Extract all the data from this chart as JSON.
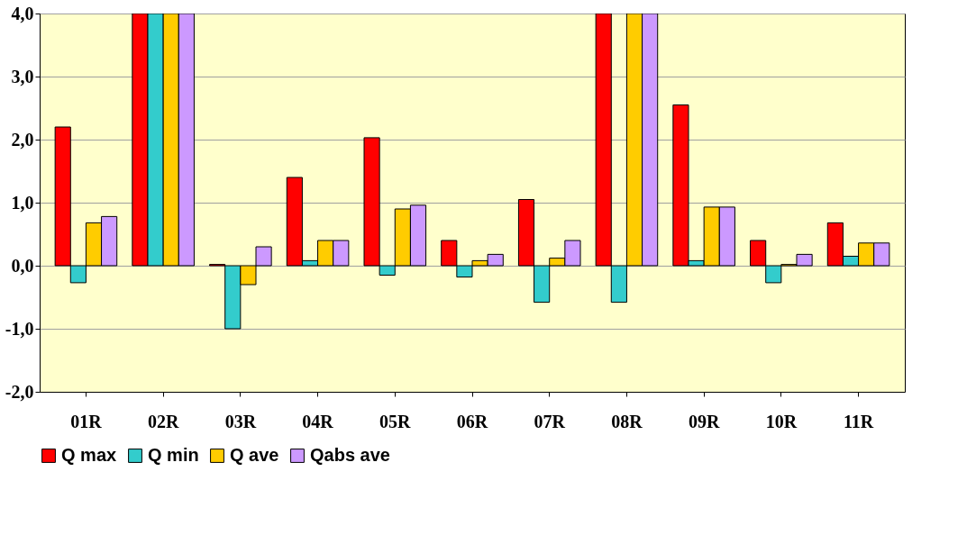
{
  "chart_data": {
    "type": "bar",
    "categories": [
      "01R",
      "02R",
      "03R",
      "04R",
      "05R",
      "06R",
      "07R",
      "08R",
      "09R",
      "10R",
      "11R"
    ],
    "series": [
      {
        "name": "Q max",
        "color": "#ff0000",
        "values": [
          2.2,
          4.0,
          0.02,
          1.4,
          2.03,
          0.4,
          1.05,
          4.0,
          2.55,
          0.4,
          0.68
        ]
      },
      {
        "name": "Q min",
        "color": "#33cccc",
        "values": [
          -0.27,
          4.0,
          -1.0,
          0.08,
          -0.15,
          -0.18,
          -0.58,
          -0.58,
          0.08,
          -0.27,
          0.15
        ]
      },
      {
        "name": "Q ave",
        "color": "#ffcc00",
        "values": [
          0.68,
          4.0,
          -0.3,
          0.4,
          0.9,
          0.08,
          0.12,
          4.0,
          0.93,
          0.02,
          0.36
        ]
      },
      {
        "name": "Qabs ave",
        "color": "#cc99ff",
        "values": [
          0.78,
          4.0,
          0.3,
          0.4,
          0.96,
          0.18,
          0.4,
          4.0,
          0.93,
          0.18,
          0.36
        ]
      }
    ],
    "ylim": [
      -2,
      4
    ],
    "yticks": [
      {
        "value": -2,
        "label": "-2,0"
      },
      {
        "value": -1,
        "label": "-1,0"
      },
      {
        "value": 0,
        "label": "0,0"
      },
      {
        "value": 1,
        "label": "1,0"
      },
      {
        "value": 2,
        "label": "2,0"
      },
      {
        "value": 3,
        "label": "3,0"
      },
      {
        "value": 4,
        "label": "4,0"
      }
    ],
    "grid": "y",
    "legend": "bottom"
  }
}
